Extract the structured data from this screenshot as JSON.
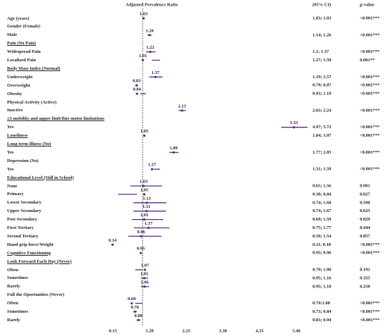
{
  "chart_data": {
    "type": "forest",
    "title": "Adjusted Prevalence Ratio",
    "ci_header": "(95% CI)",
    "p_header": "p-value",
    "color": "#5b2a86",
    "ref_line": 1,
    "xlim": [
      0.15,
      5.4
    ],
    "xticks": [
      0.15,
      {
        "value": 1.2,
        "label": "1.20"
      },
      2.25,
      {
        "value": 3.3,
        "label": "3.30"
      },
      4.35,
      {
        "value": 5.4,
        "label": "5.40"
      }
    ],
    "categories": [
      "Age (years)",
      "Gender (Female)",
      "Male",
      "Pain (No Pain)",
      "Widespread Pain",
      "Localized Pain",
      "Body Mass Index (Normal)",
      "Underweight",
      "Overweight",
      "Obesity",
      "Physical Activity (Active)",
      "Inactive",
      "≥3 mobility and upper limb/fine motor limitations",
      "Yes",
      "Loneliness",
      "Long-term illness (No)",
      "Yes",
      "Depression (No)",
      "Yes",
      "Educational Level (Still in School)",
      "None",
      "Primary",
      "Lower Secondary",
      "Upper Secondary",
      "Post Secondary",
      "First Tertiary",
      "Second Tertiary",
      "Hand grip force/Weight",
      "Cognitive Functioning",
      "Look Forward Each Day (Never)",
      "Often",
      "Sometimes",
      "Rarely",
      "Full the Oportunities (Never)",
      "Often",
      "Sometimes",
      "Rarely"
    ],
    "underlined": [
      false,
      false,
      false,
      true,
      false,
      false,
      true,
      false,
      false,
      false,
      false,
      false,
      true,
      false,
      true,
      true,
      false,
      false,
      false,
      true,
      false,
      false,
      false,
      false,
      false,
      false,
      false,
      false,
      true,
      true,
      false,
      false,
      false,
      false,
      false,
      false,
      false
    ],
    "values": [
      1.03,
      null,
      1.2,
      null,
      1.22,
      1.01,
      null,
      1.37,
      0.83,
      0.84,
      null,
      2.13,
      null,
      5.33,
      1.05,
      null,
      1.89,
      null,
      1.27,
      null,
      1.03,
      1.05,
      1.12,
      1.11,
      1.05,
      1.17,
      0.96,
      0.14,
      0.95,
      null,
      1.07,
      1.05,
      1.06,
      null,
      0.69,
      0.78,
      0.88
    ],
    "value_labels": [
      "1.03",
      null,
      "1.20",
      null,
      "1.22",
      "1.01",
      null,
      "1.37",
      "0.83",
      "0.84",
      null,
      "2.13",
      null,
      "5.33",
      "1.05",
      null,
      "1.89",
      null,
      "1.27",
      null,
      "1.03",
      "1.05",
      "1.12",
      "1.11",
      "1.05",
      "1.17",
      "0.96",
      "0.14",
      "0.95",
      null,
      "1.07",
      "1.05",
      "1.06",
      null,
      "0.69",
      "0.78",
      "0.88"
    ],
    "ci_low": [
      1.03,
      null,
      1.14,
      null,
      1.1,
      1.27,
      null,
      1.19,
      0.79,
      0.93,
      null,
      2.03,
      null,
      4.97,
      1.04,
      null,
      1.77,
      null,
      1.31,
      null,
      0.65,
      0.3,
      0.74,
      0.74,
      0.69,
      0.75,
      0.59,
      0.11,
      0.95,
      null,
      0.79,
      0.95,
      0.95,
      null,
      0.79,
      0.73,
      0.83
    ],
    "ci_high": [
      1.03,
      null,
      1.26,
      null,
      1.37,
      1.5,
      null,
      1.57,
      0.87,
      1.1,
      null,
      2.24,
      null,
      5.72,
      1.07,
      null,
      2.03,
      null,
      1.5,
      null,
      1.56,
      0.84,
      1.68,
      1.67,
      1.59,
      1.77,
      1.54,
      0.18,
      0.96,
      null,
      1.0,
      1.16,
      1.18,
      null,
      1.0,
      0.84,
      0.94
    ],
    "ci_labels": [
      "1.03; 1.03",
      null,
      "1.14; 1.26",
      null,
      "1.1; 1.37",
      "1.27; 1.50",
      null,
      "1.19; 1.57",
      "0.79; 0.87",
      "0.93; 1.10",
      null,
      "2.03; 2.24",
      null,
      "4.97; 5.72",
      "1.04; 1.07",
      null,
      "1.77; 2.03",
      null,
      "1.31; 1.50",
      null,
      "0.65; 1.56",
      "0.30; 0.84",
      "0.74; 1.68",
      "0.74; 1.67",
      "0.69; 1.59",
      "0.75; 1.77",
      "0.59; 1.54",
      "0.11; 0.18",
      "0.95; 0.96",
      null,
      "0.79; 1.00",
      "0.95; 1.16",
      "0.95; 1.18",
      null,
      "0.79:1.00",
      "0.73; 0.84",
      "0.83; 0.94"
    ],
    "p_values": [
      "<0.001***",
      null,
      "<0.001***",
      null,
      "<0.001***",
      "0.001**",
      null,
      "<0.001***",
      "<0.001***",
      "<0.001***",
      null,
      "<0.001***",
      null,
      "<0.001***",
      "<0.001***",
      null,
      "<0.001***",
      null,
      "<0.001***",
      null,
      "0.901",
      "0.827",
      "0.598",
      "0.625",
      "0.829",
      "0.444",
      "0.857",
      "<0.001***",
      "<0.001***",
      null,
      "0.191",
      "0.355",
      "0.250",
      null,
      "<0.001***",
      "<0.001***",
      "<0.001***"
    ]
  }
}
